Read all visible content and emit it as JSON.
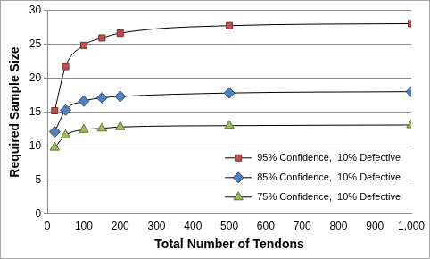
{
  "chart_data": {
    "type": "line",
    "x_label": "Total Number of Tendons",
    "y_label": "Required Sample Size",
    "x": [
      20,
      50,
      100,
      150,
      200,
      500,
      1000
    ],
    "series": [
      {
        "name": "95% Confidence,  10% Defective",
        "color": "#c0504d",
        "marker": "square",
        "line_style": "solid",
        "values": [
          15.2,
          21.7,
          24.8,
          25.9,
          26.6,
          27.7,
          28.0
        ]
      },
      {
        "name": "85% Confidence,  10% Defective",
        "color": "#4f81bd",
        "marker": "diamond",
        "line_style": "solid",
        "values": [
          12.1,
          15.3,
          16.6,
          17.1,
          17.3,
          17.8,
          18.0
        ]
      },
      {
        "name": "75% Confidence,  10% Defective",
        "color": "#9bbb59",
        "marker": "triangle",
        "line_style": "solid",
        "values": [
          9.8,
          11.6,
          12.4,
          12.6,
          12.8,
          13.0,
          13.1
        ]
      }
    ],
    "xlim": [
      0,
      1000
    ],
    "xticks": [
      0,
      100,
      200,
      300,
      400,
      500,
      600,
      700,
      800,
      900,
      1000
    ],
    "ylim": [
      0,
      30
    ],
    "yticks": [
      0,
      5,
      10,
      15,
      20,
      25,
      30
    ],
    "grid": "y",
    "legend": "lower right"
  }
}
